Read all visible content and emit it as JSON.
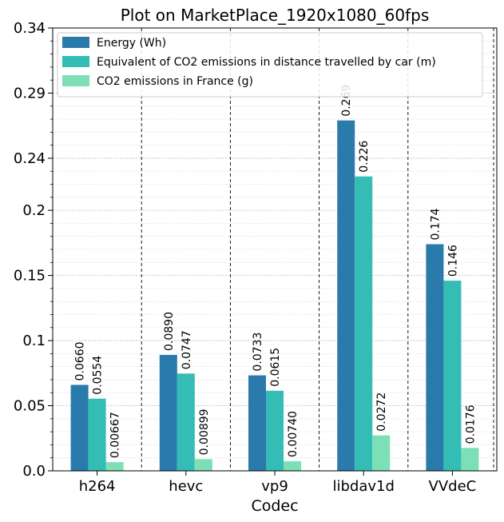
{
  "chart_data": {
    "type": "bar",
    "title": "Plot on MarketPlace_1920x1080_60fps",
    "xlabel": "Codec",
    "ylabel": "",
    "categories": [
      "h264",
      "hevc",
      "vp9",
      "libdav1d",
      "VVdeC"
    ],
    "ylim": [
      0,
      0.34
    ],
    "yticks": [
      0.0,
      0.05,
      0.1,
      0.15,
      0.2,
      0.24,
      0.29,
      0.34
    ],
    "ytick_labels": [
      "0.0",
      "0.05",
      "0.1",
      "0.15",
      "0.2",
      "0.24",
      "0.29",
      "0.34"
    ],
    "grid": true,
    "legend_position": "top-left",
    "series": [
      {
        "name": "Energy (Wh)",
        "color": "#2a7aab",
        "values": [
          0.066,
          0.089,
          0.0733,
          0.269,
          0.174
        ],
        "labels": [
          "0.0660",
          "0.0890",
          "0.0733",
          "0.269",
          "0.174"
        ]
      },
      {
        "name": "Equivalent of CO2 emissions in distance travelled by car (m)",
        "color": "#33bdb5",
        "values": [
          0.0554,
          0.0747,
          0.0615,
          0.226,
          0.146
        ],
        "labels": [
          "0.0554",
          "0.0747",
          "0.0615",
          "0.226",
          "0.146"
        ]
      },
      {
        "name": "CO2 emissions in France (g)",
        "color": "#7ddfb6",
        "values": [
          0.00667,
          0.00899,
          0.0074,
          0.0272,
          0.0176
        ],
        "labels": [
          "0.00667",
          "0.00899",
          "0.00740",
          "0.0272",
          "0.0176"
        ]
      }
    ]
  }
}
